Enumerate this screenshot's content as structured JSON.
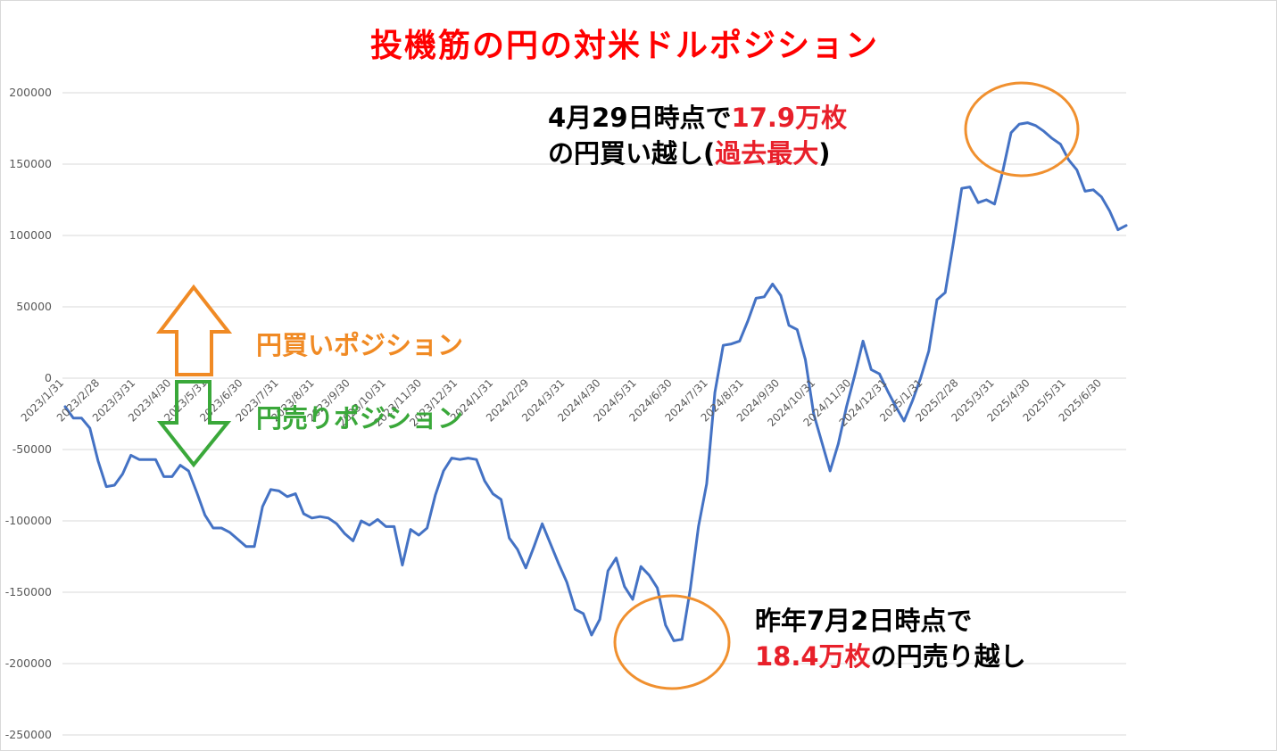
{
  "title": "投機筋の円の対米ドルポジション",
  "colors": {
    "title": "#ff0000",
    "series": "#4472c4",
    "buy": "#f08a24",
    "sell": "#3aa83a",
    "highlight": "#e8202a",
    "circle": "#f0902f",
    "grid": "#d9d9d9"
  },
  "legend": {
    "buy_label": "円買いポジション",
    "sell_label": "円売りポジション"
  },
  "annotations": {
    "peak": {
      "line1_a": "4月29日時点で",
      "line1_b": "17.9万枚",
      "line2_a": "の円買い越し(",
      "line2_b": "過去最大",
      "line2_c": ")"
    },
    "trough": {
      "line1": "昨年7月2日時点で",
      "line2_a": "18.4万枚",
      "line2_b": "の円売り越し"
    }
  },
  "chart_data": {
    "type": "line",
    "ylim": [
      -250000,
      200000
    ],
    "yticks": [
      200000,
      150000,
      100000,
      50000,
      0,
      -50000,
      -100000,
      -150000,
      -200000,
      -250000
    ],
    "ytick_labels": [
      "200000",
      "150000",
      "100000",
      "50000",
      "0",
      "-50000",
      "-100000",
      "-150000",
      "-200000",
      "-250000"
    ],
    "xtick_labels": [
      "2023/1/31",
      "2023/2/28",
      "2023/3/31",
      "2023/4/30",
      "2023/5/31",
      "2023/6/30",
      "2023/7/31",
      "2023/8/31",
      "2023/9/30",
      "2023/10/31",
      "2023/11/30",
      "2023/12/31",
      "2024/1/31",
      "2024/2/29",
      "2024/3/31",
      "2024/4/30",
      "2024/5/31",
      "2024/6/30",
      "2024/7/31",
      "2024/8/31",
      "2024/9/30",
      "2024/10/31",
      "2024/11/30",
      "2024/12/31",
      "2025/1/31",
      "2025/2/28",
      "2025/3/31",
      "2025/4/30",
      "2025/5/31",
      "2025/6/30"
    ],
    "series": [
      {
        "values": [
          -20000,
          -28000,
          -28000,
          -35000,
          -58000,
          -76000,
          -75000,
          -67000,
          -54000,
          -57000,
          -57000,
          -57000,
          -69000,
          -69000,
          -61000,
          -65000,
          -80000,
          -96000,
          -105000,
          -105000,
          -108000,
          -113000,
          -118000,
          -118000,
          -90000,
          -78000,
          -79000,
          -83000,
          -81000,
          -95000,
          -98000,
          -97000,
          -98000,
          -102000,
          -109000,
          -114000,
          -100000,
          -103000,
          -99000,
          -104000,
          -104000,
          -131000,
          -106000,
          -110000,
          -105000,
          -82000,
          -65000,
          -56000,
          -57000,
          -56000,
          -57000,
          -72000,
          -81000,
          -85000,
          -112000,
          -120000,
          -133000,
          -118000,
          -102000,
          -116000,
          -130000,
          -143000,
          -162000,
          -165000,
          -180000,
          -169000,
          -135000,
          -126000,
          -146000,
          -155000,
          -132000,
          -138000,
          -147000,
          -173000,
          -184000,
          -183000,
          -148000,
          -104000,
          -74000,
          -10000,
          23000,
          24000,
          26000,
          40000,
          56000,
          57000,
          66000,
          58000,
          37000,
          34000,
          13000,
          -25000,
          -45000,
          -65000,
          -46000,
          -20000,
          2000,
          26000,
          6000,
          3000,
          -9000,
          -20000,
          -30000,
          -16000,
          0,
          19000,
          55000,
          60000,
          95000,
          133000,
          134000,
          123000,
          125000,
          122000,
          145000,
          172000,
          178000,
          179000,
          177000,
          173000,
          168000,
          164000,
          153000,
          146000,
          131000,
          132000,
          127000,
          117000,
          104000,
          107000
        ]
      }
    ]
  }
}
